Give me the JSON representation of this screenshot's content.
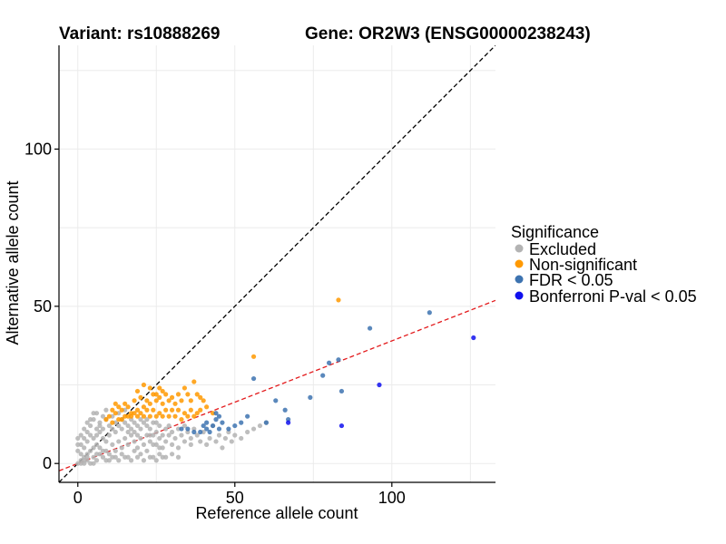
{
  "chart_data": {
    "type": "scatter",
    "title_left": "Variant: rs10888269",
    "title_right": "Gene: OR2W3 (ENSG00000238243)",
    "xlabel": "Reference allele count",
    "ylabel": "Alternative allele count",
    "xlim": [
      -6,
      133
    ],
    "ylim": [
      -6,
      133
    ],
    "x_ticks": [
      0,
      50,
      100
    ],
    "y_ticks": [
      0,
      50,
      100
    ],
    "grid": true,
    "legend": {
      "title": "Significance",
      "placement": "right",
      "items": [
        {
          "label": "Excluded",
          "color": "#b3b3b3"
        },
        {
          "label": "Non-significant",
          "color": "#ff9900"
        },
        {
          "label": "FDR < 0.05",
          "color": "#3d73b0"
        },
        {
          "label": "Bonferroni P-val < 0.05",
          "color": "#1010ee"
        }
      ]
    },
    "reference_lines": [
      {
        "name": "y = x",
        "slope": 1,
        "intercept": 0,
        "color": "#000000",
        "dash": true
      },
      {
        "name": "fit",
        "slope": 0.39,
        "intercept": 0,
        "color": "#e31a1c",
        "dash": true
      }
    ],
    "series": [
      {
        "name": "Excluded",
        "color": "#b3b3b3",
        "points": [
          [
            0,
            0
          ],
          [
            1,
            1
          ],
          [
            2,
            0
          ],
          [
            1,
            3
          ],
          [
            2,
            2
          ],
          [
            3,
            1
          ],
          [
            0,
            4
          ],
          [
            4,
            0
          ],
          [
            3,
            3
          ],
          [
            2,
            5
          ],
          [
            5,
            2
          ],
          [
            4,
            4
          ],
          [
            1,
            6
          ],
          [
            6,
            1
          ],
          [
            5,
            5
          ],
          [
            3,
            7
          ],
          [
            7,
            3
          ],
          [
            6,
            6
          ],
          [
            2,
            8
          ],
          [
            8,
            2
          ],
          [
            7,
            5
          ],
          [
            5,
            8
          ],
          [
            9,
            4
          ],
          [
            4,
            9
          ],
          [
            8,
            8
          ],
          [
            10,
            3
          ],
          [
            3,
            10
          ],
          [
            9,
            7
          ],
          [
            7,
            10
          ],
          [
            11,
            6
          ],
          [
            6,
            11
          ],
          [
            10,
            9
          ],
          [
            12,
            4
          ],
          [
            4,
            12
          ],
          [
            11,
            11
          ],
          [
            13,
            7
          ],
          [
            7,
            13
          ],
          [
            12,
            10
          ],
          [
            14,
            5
          ],
          [
            5,
            14
          ],
          [
            13,
            12
          ],
          [
            15,
            8
          ],
          [
            8,
            15
          ],
          [
            14,
            11
          ],
          [
            16,
            6
          ],
          [
            6,
            16
          ],
          [
            15,
            13
          ],
          [
            17,
            9
          ],
          [
            9,
            17
          ],
          [
            16,
            12
          ],
          [
            18,
            7
          ],
          [
            18,
            10
          ],
          [
            17,
            14
          ],
          [
            19,
            5
          ],
          [
            19,
            12
          ],
          [
            20,
            8
          ],
          [
            20,
            11
          ],
          [
            21,
            6
          ],
          [
            21,
            13
          ],
          [
            22,
            9
          ],
          [
            22,
            12
          ],
          [
            23,
            7
          ],
          [
            23,
            11
          ],
          [
            24,
            9
          ],
          [
            24,
            13
          ],
          [
            25,
            6
          ],
          [
            25,
            10
          ],
          [
            26,
            8
          ],
          [
            26,
            12
          ],
          [
            27,
            9
          ],
          [
            27,
            5
          ],
          [
            28,
            11
          ],
          [
            28,
            7
          ],
          [
            29,
            9
          ],
          [
            29,
            12
          ],
          [
            30,
            6
          ],
          [
            30,
            10
          ],
          [
            31,
            8
          ],
          [
            32,
            11
          ],
          [
            32,
            5
          ],
          [
            33,
            9
          ],
          [
            34,
            7
          ],
          [
            34,
            12
          ],
          [
            35,
            10
          ],
          [
            36,
            6
          ],
          [
            36,
            8
          ],
          [
            37,
            11
          ],
          [
            38,
            9
          ],
          [
            39,
            7
          ],
          [
            40,
            10
          ],
          [
            41,
            6
          ],
          [
            42,
            8
          ],
          [
            43,
            12
          ],
          [
            44,
            7
          ],
          [
            45,
            9
          ],
          [
            46,
            5
          ],
          [
            47,
            8
          ],
          [
            48,
            10
          ],
          [
            49,
            7
          ],
          [
            50,
            9
          ],
          [
            52,
            8
          ],
          [
            54,
            10
          ],
          [
            56,
            11
          ],
          [
            58,
            12
          ],
          [
            60,
            13
          ],
          [
            2,
            11
          ],
          [
            3,
            13
          ],
          [
            4,
            14
          ],
          [
            5,
            16
          ],
          [
            1,
            9
          ],
          [
            0,
            6
          ],
          [
            0,
            8
          ],
          [
            1,
            0
          ],
          [
            2,
            1
          ],
          [
            3,
            2
          ],
          [
            5,
            0
          ],
          [
            6,
            3
          ],
          [
            8,
            4
          ],
          [
            10,
            1
          ],
          [
            12,
            2
          ],
          [
            14,
            3
          ],
          [
            16,
            2
          ],
          [
            18,
            4
          ],
          [
            20,
            3
          ],
          [
            22,
            4
          ],
          [
            24,
            2
          ],
          [
            26,
            3
          ],
          [
            28,
            2
          ],
          [
            30,
            3
          ],
          [
            32,
            2
          ],
          [
            9,
            1
          ],
          [
            11,
            2
          ],
          [
            13,
            1
          ],
          [
            15,
            2
          ],
          [
            17,
            1
          ],
          [
            19,
            2
          ],
          [
            21,
            1
          ],
          [
            23,
            2
          ],
          [
            25,
            1
          ],
          [
            27,
            2
          ],
          [
            6,
            9
          ],
          [
            7,
            12
          ],
          [
            8,
            11
          ],
          [
            9,
            14
          ],
          [
            10,
            12
          ],
          [
            11,
            15
          ],
          [
            12,
            13
          ],
          [
            13,
            16
          ],
          [
            14,
            14
          ],
          [
            15,
            17
          ],
          [
            16,
            10
          ],
          [
            17,
            11
          ],
          [
            18,
            13
          ],
          [
            19,
            9
          ],
          [
            20,
            14
          ],
          [
            22,
            14
          ],
          [
            23,
            9
          ],
          [
            24,
            6
          ],
          [
            25,
            13
          ],
          [
            26,
            5
          ]
        ]
      },
      {
        "name": "Non-significant",
        "color": "#ff9900",
        "points": [
          [
            10,
            15
          ],
          [
            11,
            17
          ],
          [
            12,
            16
          ],
          [
            13,
            18
          ],
          [
            14,
            17
          ],
          [
            15,
            19
          ],
          [
            16,
            18
          ],
          [
            17,
            16
          ],
          [
            18,
            20
          ],
          [
            19,
            17
          ],
          [
            20,
            21
          ],
          [
            21,
            18
          ],
          [
            22,
            20
          ],
          [
            23,
            19
          ],
          [
            24,
            22
          ],
          [
            25,
            20
          ],
          [
            26,
            21
          ],
          [
            27,
            19
          ],
          [
            28,
            22
          ],
          [
            29,
            20
          ],
          [
            30,
            21
          ],
          [
            31,
            19
          ],
          [
            32,
            22
          ],
          [
            33,
            20
          ],
          [
            34,
            24
          ],
          [
            35,
            22
          ],
          [
            36,
            20
          ],
          [
            37,
            26
          ],
          [
            38,
            22
          ],
          [
            39,
            21
          ],
          [
            40,
            20
          ],
          [
            14,
            14
          ],
          [
            16,
            15
          ],
          [
            18,
            16
          ],
          [
            20,
            16
          ],
          [
            22,
            17
          ],
          [
            24,
            17
          ],
          [
            26,
            16
          ],
          [
            28,
            17
          ],
          [
            30,
            17
          ],
          [
            32,
            17
          ],
          [
            34,
            16
          ],
          [
            36,
            17
          ],
          [
            38,
            16
          ],
          [
            19,
            23
          ],
          [
            21,
            25
          ],
          [
            23,
            24
          ],
          [
            25,
            22
          ],
          [
            27,
            23
          ],
          [
            11,
            13
          ],
          [
            13,
            14
          ],
          [
            15,
            15
          ],
          [
            17,
            15
          ],
          [
            19,
            15
          ],
          [
            21,
            15
          ],
          [
            23,
            15
          ],
          [
            25,
            15
          ],
          [
            27,
            15
          ],
          [
            29,
            15
          ],
          [
            31,
            15
          ],
          [
            33,
            14
          ],
          [
            35,
            15
          ],
          [
            37,
            15
          ],
          [
            39,
            17
          ],
          [
            41,
            18
          ],
          [
            43,
            16
          ],
          [
            56,
            34
          ],
          [
            83,
            52
          ],
          [
            9,
            14
          ],
          [
            12,
            19
          ],
          [
            26,
            24
          ]
        ]
      },
      {
        "name": "FDR < 0.05",
        "color": "#3d73b0",
        "points": [
          [
            33,
            11
          ],
          [
            35,
            11
          ],
          [
            37,
            10
          ],
          [
            39,
            10
          ],
          [
            40,
            12
          ],
          [
            41,
            11
          ],
          [
            42,
            10
          ],
          [
            43,
            12
          ],
          [
            44,
            14
          ],
          [
            45,
            15
          ],
          [
            44,
            16
          ],
          [
            46,
            13
          ],
          [
            48,
            11
          ],
          [
            50,
            12
          ],
          [
            52,
            13
          ],
          [
            54,
            15
          ],
          [
            56,
            27
          ],
          [
            60,
            13
          ],
          [
            63,
            20
          ],
          [
            66,
            17
          ],
          [
            67,
            14
          ],
          [
            74,
            21
          ],
          [
            78,
            28
          ],
          [
            80,
            32
          ],
          [
            83,
            33
          ],
          [
            84,
            23
          ],
          [
            93,
            43
          ],
          [
            112,
            48
          ],
          [
            45,
            11
          ],
          [
            41,
            13
          ]
        ]
      },
      {
        "name": "Bonferroni P-val < 0.05",
        "color": "#1010ee",
        "points": [
          [
            84,
            12
          ],
          [
            96,
            25
          ],
          [
            126,
            40
          ],
          [
            67,
            13
          ]
        ]
      }
    ]
  }
}
